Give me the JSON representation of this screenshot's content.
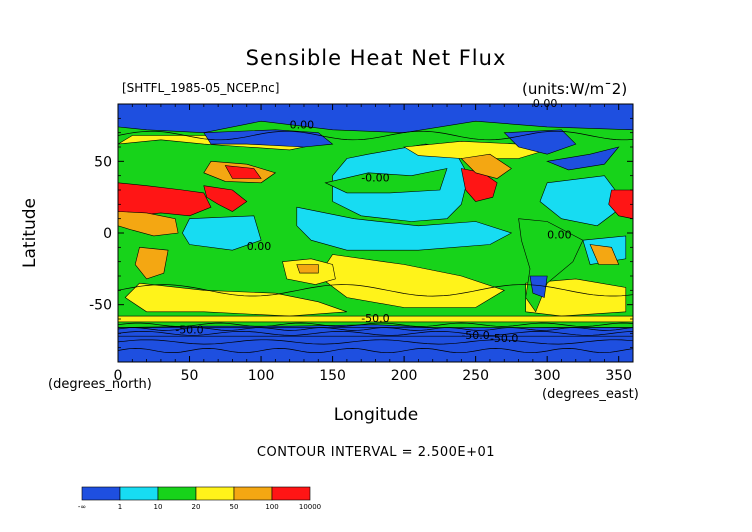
{
  "title": "Sensible Heat Net Flux",
  "file_label": "[SHTFL_1985-05_NCEP.nc]",
  "units_label": "(units:W/m^2)",
  "contour_interval": "CONTOUR INTERVAL = 2.500E+01",
  "chart_data": {
    "type": "heatmap",
    "title": "Sensible Heat Net Flux",
    "xlabel": "Longitude",
    "ylabel": "Latitude",
    "x_units_label": "(degrees_east)",
    "y_units_label": "(degrees_north)",
    "xlim": [
      0,
      360
    ],
    "ylim": [
      -90,
      90
    ],
    "x_ticks": [
      0,
      50,
      100,
      150,
      200,
      250,
      300,
      350
    ],
    "y_ticks": [
      -50,
      0,
      50
    ],
    "colorbar": {
      "labels": [
        "-∞",
        "1",
        "10",
        "20",
        "50",
        "100",
        "10000"
      ],
      "colors": [
        "#1e4fe0",
        "#17dcf2",
        "#17d31a",
        "#fff31a",
        "#f4a712",
        "#ff1515"
      ]
    },
    "contour_labels": [
      "0.00",
      "0.00",
      "-0.00",
      "0.00",
      "0.00",
      "-50.0",
      "-50.0",
      "-50.0",
      "-50.0"
    ]
  },
  "colors": {
    "blue": "#1e4fe0",
    "cyan": "#17dcf2",
    "green": "#17d31a",
    "yellow": "#fff31a",
    "orange": "#f4a712",
    "red": "#ff1515"
  }
}
